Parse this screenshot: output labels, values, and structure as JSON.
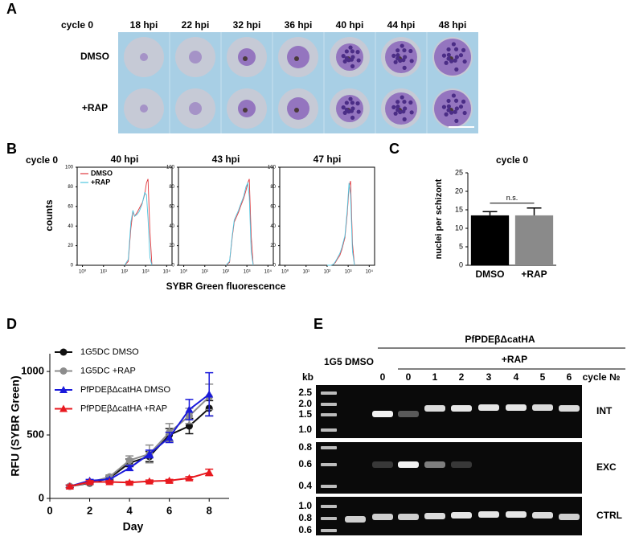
{
  "panel_a": {
    "letter": "A",
    "cycle": "cycle 0",
    "times": [
      "18 hpi",
      "22 hpi",
      "32 hpi",
      "36 hpi",
      "40 hpi",
      "44 hpi",
      "48 hpi"
    ],
    "conditions": [
      "DMSO",
      "+RAP"
    ]
  },
  "panel_b": {
    "letter": "B",
    "cycle": "cycle 0",
    "y_label": "counts",
    "x_label": "SYBR Green fluorescence"
  },
  "chart_data": [
    {
      "type": "line",
      "title": "40 hpi",
      "log_x": true,
      "x": [
        100,
        150,
        200,
        250,
        300,
        400,
        500,
        700,
        900,
        1100,
        1300,
        1600,
        2000
      ],
      "series": [
        {
          "name": "DMSO",
          "color": "#e0393e",
          "values": [
            0,
            4,
            38,
            55,
            50,
            54,
            58,
            64,
            72,
            84,
            88,
            35,
            0
          ]
        },
        {
          "name": "+RAP",
          "color": "#4fc6e0",
          "values": [
            0,
            6,
            44,
            56,
            50,
            52,
            55,
            63,
            74,
            72,
            48,
            8,
            0
          ]
        }
      ],
      "xlim": [
        0.56,
        18000
      ],
      "xticks": [
        {
          "value": 1,
          "label": "10⁰"
        },
        {
          "value": 10,
          "label": "10¹"
        },
        {
          "value": 100,
          "label": "10²"
        },
        {
          "value": 1000,
          "label": "10³"
        },
        {
          "value": 10000,
          "label": "10⁴"
        }
      ],
      "ylim": [
        0,
        100
      ],
      "yticks": [
        0,
        20,
        40,
        60,
        80,
        100
      ],
      "legend": "upper left"
    },
    {
      "type": "line",
      "title": "43 hpi",
      "log_x": true,
      "x": [
        100,
        150,
        200,
        250,
        300,
        400,
        500,
        700,
        900,
        1100,
        1300,
        1600,
        2000
      ],
      "series": [
        {
          "color": "#e0393e",
          "values": [
            0,
            3,
            28,
            44,
            48,
            54,
            60,
            68,
            76,
            84,
            88,
            30,
            0
          ]
        },
        {
          "color": "#4fc6e0",
          "values": [
            0,
            4,
            30,
            46,
            50,
            56,
            62,
            70,
            80,
            84,
            70,
            14,
            0
          ]
        }
      ],
      "xlim": [
        0.56,
        18000
      ],
      "xticks": [
        {
          "value": 1,
          "label": "10⁰"
        },
        {
          "value": 10,
          "label": "10¹"
        },
        {
          "value": 100,
          "label": "10²"
        },
        {
          "value": 1000,
          "label": "10³"
        },
        {
          "value": 10000,
          "label": "10⁴"
        }
      ],
      "ylim": [
        0,
        100
      ],
      "yticks": [
        0,
        20,
        40,
        60,
        80,
        100
      ]
    },
    {
      "type": "line",
      "title": "47 hpi",
      "log_x": true,
      "x": [
        100,
        150,
        200,
        250,
        300,
        400,
        500,
        700,
        900,
        1100,
        1300,
        1600,
        2000
      ],
      "series": [
        {
          "color": "#e0393e",
          "values": [
            0,
            0,
            1,
            3,
            6,
            10,
            16,
            28,
            52,
            80,
            86,
            22,
            0
          ]
        },
        {
          "color": "#4fc6e0",
          "values": [
            0,
            0,
            1,
            4,
            7,
            12,
            18,
            30,
            56,
            84,
            72,
            14,
            0
          ]
        }
      ],
      "xlim": [
        0.56,
        18000
      ],
      "xticks": [
        {
          "value": 1,
          "label": "10⁰"
        },
        {
          "value": 10,
          "label": "10¹"
        },
        {
          "value": 100,
          "label": "10²"
        },
        {
          "value": 1000,
          "label": "10³"
        },
        {
          "value": 10000,
          "label": "10⁴"
        }
      ],
      "ylim": [
        0,
        100
      ],
      "yticks": [
        0,
        20,
        40,
        60,
        80,
        100
      ]
    },
    {
      "type": "bar",
      "panel": "C",
      "title": "cycle 0",
      "y_label": "nuclei per schizont",
      "categories": [
        "DMSO",
        "+RAP"
      ],
      "values": [
        13.5,
        13.5
      ],
      "errors": [
        1,
        2
      ],
      "colors": [
        "#000000",
        "#8a8a8a"
      ],
      "ylim": [
        0,
        25
      ],
      "yticks": [
        0,
        5,
        10,
        15,
        20,
        25
      ],
      "annotation": "n.s."
    },
    {
      "type": "line",
      "panel": "D",
      "x_label": "Day",
      "y_label": "RFU (SYBR Green)",
      "x": [
        1,
        2,
        3,
        4,
        5,
        6,
        7,
        8
      ],
      "series": [
        {
          "name": "1G5DC DMSO",
          "color": "#111111",
          "marker": "circle",
          "values": [
            95,
            120,
            160,
            280,
            330,
            500,
            570,
            710
          ],
          "errors": [
            10,
            10,
            15,
            30,
            40,
            50,
            60,
            60
          ]
        },
        {
          "name": "1G5DC +RAP",
          "color": "#8c8c8c",
          "marker": "circle",
          "values": [
            95,
            125,
            170,
            300,
            350,
            520,
            650,
            800
          ],
          "errors": [
            10,
            10,
            15,
            35,
            70,
            70,
            60,
            100
          ]
        },
        {
          "name": "PfPDEβΔcatHA DMSO",
          "color": "#1a1adb",
          "marker": "triangle",
          "values": [
            95,
            140,
            150,
            240,
            350,
            480,
            700,
            820
          ],
          "errors": [
            10,
            10,
            10,
            20,
            30,
            40,
            80,
            170
          ]
        },
        {
          "name": "PfPDEβΔcatHA +RAP",
          "color": "#e8191f",
          "marker": "triangle",
          "values": [
            95,
            130,
            130,
            125,
            135,
            140,
            160,
            205
          ],
          "errors": [
            10,
            10,
            10,
            10,
            10,
            10,
            12,
            25
          ]
        }
      ],
      "xlim": [
        0,
        9
      ],
      "xticks": [
        0,
        2,
        4,
        6,
        8
      ],
      "ylim": [
        0,
        1140
      ],
      "yticks": [
        0,
        500,
        1000
      ],
      "legend": "upper left"
    }
  ],
  "panel_e": {
    "letter": "E",
    "construct": "PfPDEβΔcatHA",
    "control": "1G5 DMSO",
    "treatment": "+RAP",
    "kb": "kb",
    "lanes": [
      "0",
      "0",
      "1",
      "2",
      "3",
      "4",
      "5",
      "6"
    ],
    "lane_axis": "cycle №",
    "rows": [
      {
        "label": "INT",
        "ladder": [
          "2.5",
          "2.0",
          "1.5",
          "1.0"
        ]
      },
      {
        "label": "EXC",
        "ladder": [
          "0.8",
          "0.6",
          "0.4"
        ]
      },
      {
        "label": "CTRL",
        "ladder": [
          "1.0",
          "0.8",
          "0.6"
        ]
      }
    ]
  }
}
